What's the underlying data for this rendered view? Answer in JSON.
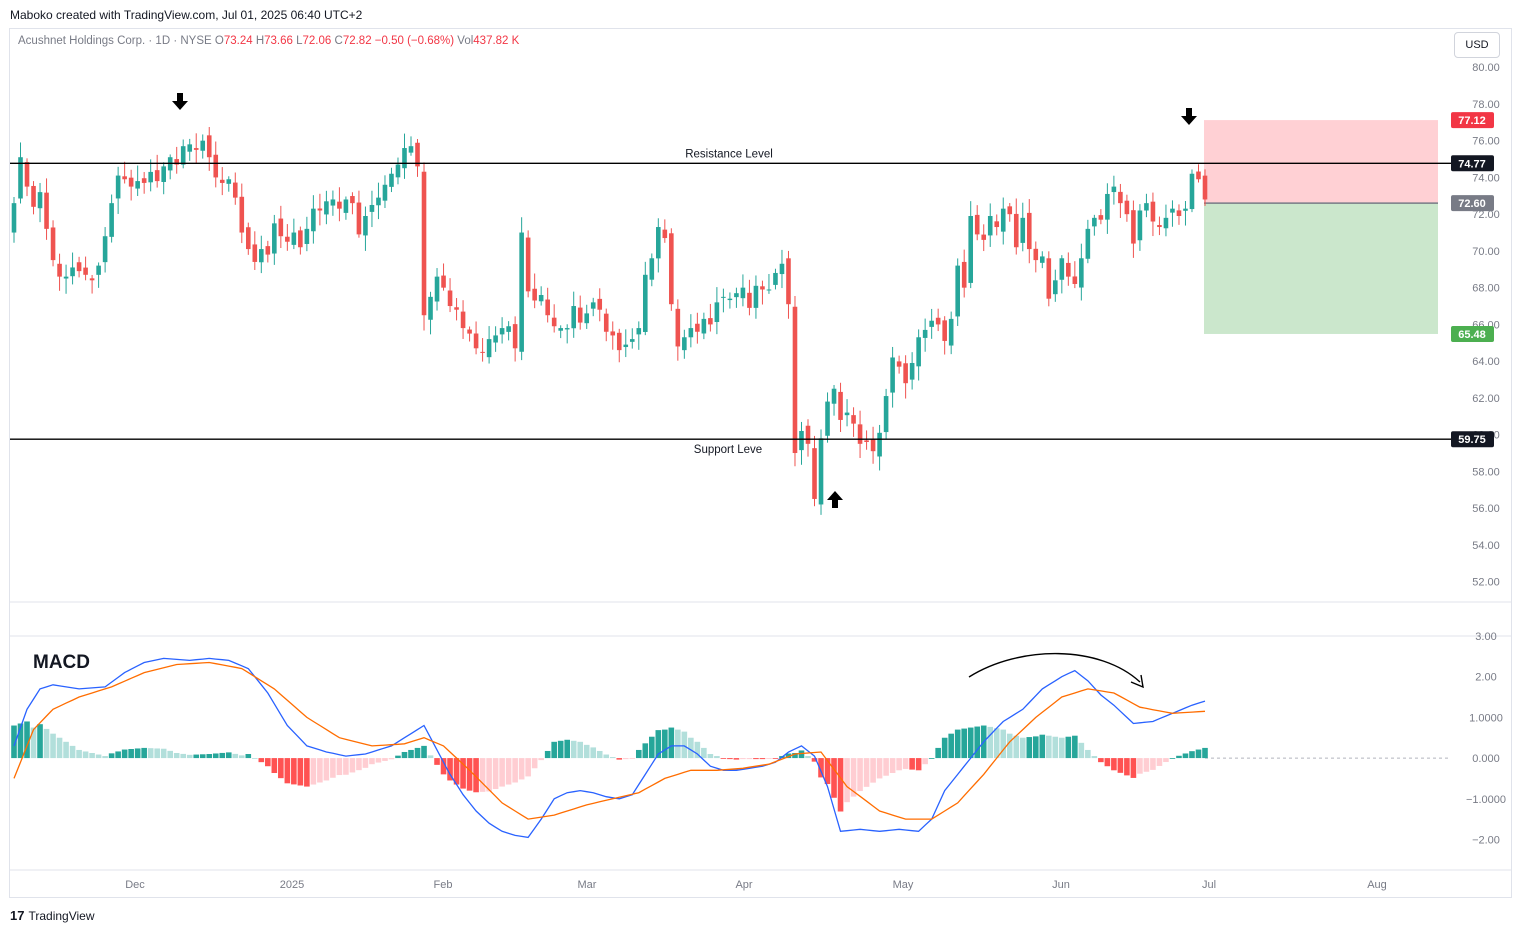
{
  "header": {
    "attribution": "Maboko created with TradingView.com, Jul 01, 2025 06:40 UTC+2",
    "symbol": "Acushnet Holdings Corp. · 1D · NYSE",
    "o_label": "O",
    "o": "73.24",
    "h_label": "H",
    "h": "73.66",
    "l_label": "L",
    "l": "72.06",
    "c_label": "C",
    "c": "72.82",
    "change": "−0.50 (−0.68%)",
    "vol_label": "Vol",
    "vol": "437.82 K"
  },
  "currency_button": "USD",
  "footer": {
    "brand_mark": "17",
    "brand": "TradingView"
  },
  "colors": {
    "up": "#26a69a",
    "down": "#ef5350",
    "macd": "#2962ff",
    "signal": "#ff6d00",
    "stop_zone": "#ffcdd2",
    "target_zone": "#c8e6c9",
    "stop_tag": "#f23645",
    "target_tag": "#4caf50",
    "level_tag": "#131722",
    "entry_tag": "#787b86"
  },
  "chart_data": [
    {
      "type": "candlestick",
      "name": "price",
      "y_ticks": [
        "80.00",
        "78.00",
        "76.00",
        "74.00",
        "72.00",
        "70.00",
        "68.00",
        "66.00",
        "64.00",
        "62.00",
        "60.00",
        "58.00",
        "56.00",
        "54.00",
        "52.00"
      ],
      "ylim": [
        51,
        80.5
      ],
      "x_ticks": [
        "Dec",
        "2025",
        "Feb",
        "Mar",
        "Apr",
        "May",
        "Jun",
        "Jul",
        "Aug"
      ],
      "levels": [
        {
          "label": "Resistance Level",
          "value": 74.77,
          "tag": "74.77"
        },
        {
          "label": "Support Leve",
          "value": 59.75,
          "tag": "59.75"
        }
      ],
      "position": {
        "stop": 77.12,
        "stop_tag": "77.12",
        "entry": 72.6,
        "entry_tag": "72.60",
        "target": 65.48,
        "target_tag": "65.48"
      },
      "annotations": [
        "arrow-down",
        "arrow-down",
        "arrow-up"
      ],
      "closes": [
        72.6,
        75.1,
        73.5,
        72.4,
        73.2,
        71.2,
        69.5,
        68.6,
        68.6,
        69.1,
        68.9,
        68.7,
        68.4,
        69.2,
        70.8,
        72.6,
        74.1,
        73.9,
        73.5,
        73.8,
        73.7,
        74.3,
        73.8,
        74.6,
        75.1,
        74.7,
        75.7,
        75.8,
        75.5,
        76.0,
        75.1,
        74.0,
        73.7,
        73.9,
        72.9,
        71.0,
        70.1,
        69.4,
        70.1,
        69.8,
        71.5,
        70.8,
        70.5,
        71.0,
        70.2,
        71.2,
        72.3,
        72.2,
        72.7,
        72.8,
        72.3,
        72.8,
        72.6,
        70.9,
        71.9,
        72.5,
        72.9,
        73.6,
        74.2,
        74.7,
        75.6,
        75.7,
        74.6,
        66.5,
        67.5,
        68.6,
        68.0,
        67.0,
        66.8,
        65.8,
        65.5,
        64.7,
        64.5,
        65.2,
        65.4,
        65.8,
        65.9,
        64.7,
        71.0,
        67.8,
        67.3,
        67.6,
        66.5,
        65.9,
        65.8,
        65.8,
        67.0,
        66.1,
        66.6,
        67.2,
        66.8,
        65.6,
        65.4,
        64.6,
        64.9,
        65.2,
        65.8,
        68.7,
        69.6,
        71.3,
        70.7,
        67.1,
        64.8,
        65.3,
        65.8,
        65.6,
        66.3,
        66.0,
        67.2,
        67.5,
        67.4,
        67.7,
        68.0,
        66.9,
        68.1,
        67.9,
        67.9,
        68.8,
        69.3,
        67.1,
        59.0,
        60.2,
        59.5,
        56.5,
        59.8,
        61.8,
        62.5,
        60.8,
        61.2,
        60.6,
        59.5,
        59.6,
        59.1,
        60.1,
        62.1,
        64.2,
        63.7,
        62.8,
        63.9,
        65.3,
        65.7,
        66.2,
        66.0,
        65.1,
        66.3,
        69.2,
        68.0,
        71.9,
        70.9,
        70.6,
        71.9,
        71.3,
        72.3,
        72.0,
        70.2,
        71.8,
        70.1,
        69.5,
        69.7,
        67.4,
        68.4,
        69.6,
        68.6,
        68.2,
        69.6,
        71.2,
        71.8,
        71.7,
        73.1,
        73.5,
        72.6,
        72.0,
        70.4,
        72.2,
        72.6,
        71.6,
        71.3,
        71.8,
        72.3,
        71.9,
        72.3,
        74.2,
        73.9,
        72.8
      ],
      "overview": {
        "high_label": "arrow-down near 76.4 (Dec)",
        "low": 55.3
      }
    },
    {
      "type": "macd",
      "label": "MACD",
      "y_ticks": [
        "3.00",
        "2.00",
        "1.0000",
        "0.000",
        "−1.0000",
        "−2.00"
      ],
      "ylim": [
        -2.75,
        3.0
      ],
      "macd_points": [
        [
          0,
          0.3
        ],
        [
          2,
          1.2
        ],
        [
          4,
          1.7
        ],
        [
          6,
          1.8
        ],
        [
          10,
          1.7
        ],
        [
          14,
          1.75
        ],
        [
          17,
          2.1
        ],
        [
          20,
          2.35
        ],
        [
          23,
          2.45
        ],
        [
          27,
          2.4
        ],
        [
          30,
          2.45
        ],
        [
          33,
          2.4
        ],
        [
          36,
          2.2
        ],
        [
          39,
          1.6
        ],
        [
          42,
          0.8
        ],
        [
          45,
          0.3
        ],
        [
          48,
          0.15
        ],
        [
          51,
          0.05
        ],
        [
          54,
          0.1
        ],
        [
          58,
          0.3
        ],
        [
          61,
          0.6
        ],
        [
          63,
          0.8
        ],
        [
          65,
          0.2
        ],
        [
          67,
          -0.4
        ],
        [
          69,
          -0.9
        ],
        [
          71,
          -1.3
        ],
        [
          73,
          -1.6
        ],
        [
          75,
          -1.8
        ],
        [
          77,
          -1.9
        ],
        [
          79,
          -1.95
        ],
        [
          81,
          -1.5
        ],
        [
          83,
          -1.0
        ],
        [
          85,
          -0.85
        ],
        [
          87,
          -0.8
        ],
        [
          89,
          -0.85
        ],
        [
          91,
          -0.95
        ],
        [
          93,
          -1.0
        ],
        [
          95,
          -0.9
        ],
        [
          97,
          -0.4
        ],
        [
          99,
          0.1
        ],
        [
          101,
          0.3
        ],
        [
          103,
          0.3
        ],
        [
          105,
          0.1
        ],
        [
          107,
          -0.2
        ],
        [
          109,
          -0.3
        ],
        [
          111,
          -0.3
        ],
        [
          113,
          -0.25
        ],
        [
          115,
          -0.2
        ],
        [
          117,
          -0.1
        ],
        [
          119,
          0.15
        ],
        [
          121,
          0.3
        ],
        [
          123,
          0.05
        ],
        [
          125,
          -0.7
        ],
        [
          127,
          -1.8
        ],
        [
          130,
          -1.75
        ],
        [
          133,
          -1.8
        ],
        [
          136,
          -1.75
        ],
        [
          139,
          -1.8
        ],
        [
          141,
          -1.5
        ],
        [
          143,
          -0.8
        ],
        [
          146,
          -0.2
        ],
        [
          149,
          0.4
        ],
        [
          152,
          0.9
        ],
        [
          155,
          1.2
        ],
        [
          158,
          1.7
        ],
        [
          161,
          2.0
        ],
        [
          163,
          2.15
        ],
        [
          165,
          1.9
        ],
        [
          167,
          1.55
        ],
        [
          169,
          1.3
        ],
        [
          172,
          0.85
        ],
        [
          175,
          0.9
        ],
        [
          178,
          1.1
        ],
        [
          181,
          1.3
        ],
        [
          183,
          1.4
        ],
        [
          185,
          1.1
        ],
        [
          188,
          1.1
        ],
        [
          191,
          0.95
        ],
        [
          194,
          1.05
        ],
        [
          196,
          1.1
        ]
      ],
      "signal_points": [
        [
          0,
          -0.5
        ],
        [
          3,
          0.7
        ],
        [
          6,
          1.2
        ],
        [
          10,
          1.5
        ],
        [
          15,
          1.75
        ],
        [
          20,
          2.1
        ],
        [
          25,
          2.3
        ],
        [
          30,
          2.35
        ],
        [
          35,
          2.2
        ],
        [
          40,
          1.7
        ],
        [
          45,
          1.0
        ],
        [
          50,
          0.5
        ],
        [
          55,
          0.3
        ],
        [
          60,
          0.35
        ],
        [
          63,
          0.5
        ],
        [
          66,
          0.3
        ],
        [
          70,
          -0.3
        ],
        [
          75,
          -1.1
        ],
        [
          79,
          -1.5
        ],
        [
          83,
          -1.4
        ],
        [
          88,
          -1.15
        ],
        [
          92,
          -1.0
        ],
        [
          96,
          -0.85
        ],
        [
          100,
          -0.5
        ],
        [
          104,
          -0.3
        ],
        [
          108,
          -0.3
        ],
        [
          112,
          -0.25
        ],
        [
          116,
          -0.15
        ],
        [
          120,
          0.1
        ],
        [
          124,
          0.15
        ],
        [
          128,
          -0.7
        ],
        [
          133,
          -1.3
        ],
        [
          137,
          -1.5
        ],
        [
          141,
          -1.5
        ],
        [
          145,
          -1.1
        ],
        [
          149,
          -0.4
        ],
        [
          153,
          0.4
        ],
        [
          157,
          1.0
        ],
        [
          161,
          1.5
        ],
        [
          165,
          1.7
        ],
        [
          169,
          1.6
        ],
        [
          173,
          1.25
        ],
        [
          178,
          1.1
        ],
        [
          183,
          1.15
        ],
        [
          188,
          1.15
        ],
        [
          192,
          1.1
        ],
        [
          196,
          1.05
        ]
      ],
      "hist_note": "histogram = macd − signal",
      "annotations": [
        "curved-arrow"
      ]
    }
  ]
}
